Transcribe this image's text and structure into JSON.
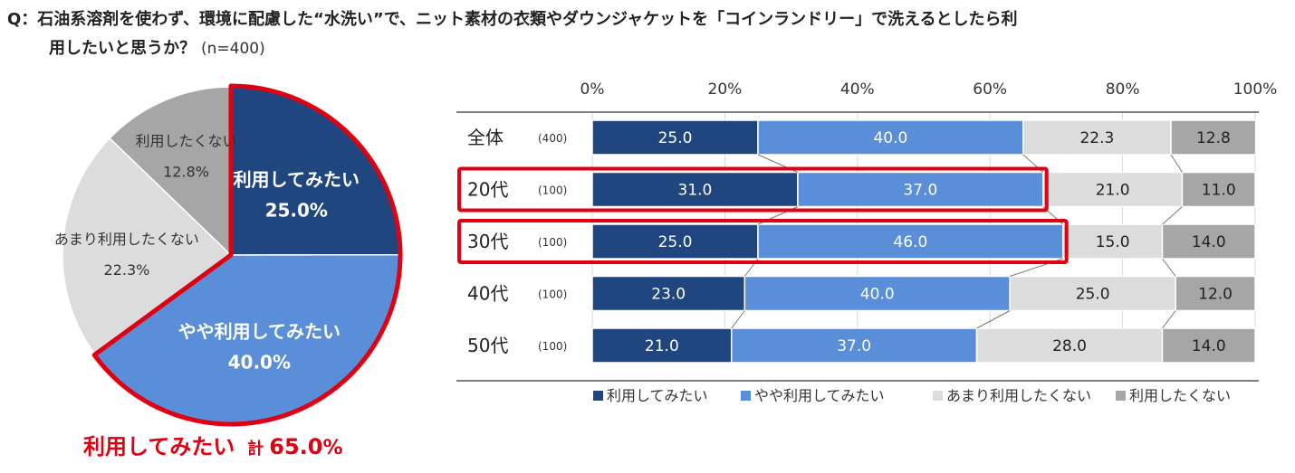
{
  "question": {
    "line1": "Q：石油系溶剤を使わず、環境に配慮した“水洗い”で、ニット素材の衣類やダウンジャケットを「コインランドリー」で洗えるとしたら利",
    "line2": "用したいと思うか？",
    "n": "(n=400)"
  },
  "pie": {
    "slices": [
      {
        "name": "利用してみたい",
        "value": 25.0,
        "label": "25.0%",
        "color": "#1f467f",
        "text_color": "#ffffff"
      },
      {
        "name": "やや利用してみたい",
        "value": 40.0,
        "label": "40.0%",
        "color": "#5a8ed8",
        "text_color": "#ffffff"
      },
      {
        "name": "あまり利用したくない",
        "value": 22.3,
        "label": "22.3%",
        "color": "#dcdcdc",
        "text_color": "#333333"
      },
      {
        "name": "利用したくない",
        "value": 12.8,
        "label": "12.8%",
        "color": "#a6a6a6",
        "text_color": "#333333"
      }
    ],
    "highlight_color": "#e00012"
  },
  "total": {
    "label": "利用してみたい",
    "kei": "計",
    "value": "65.0",
    "unit": "%"
  },
  "chart_data": {
    "type": "bar",
    "orientation": "horizontal-stacked-100",
    "xlim": [
      0,
      100
    ],
    "ticks": [
      "0%",
      "20%",
      "40%",
      "60%",
      "80%",
      "100%"
    ],
    "categories": [
      "全体",
      "20代",
      "30代",
      "40代",
      "50代"
    ],
    "n": [
      "(400)",
      "(100)",
      "(100)",
      "(100)",
      "(100)"
    ],
    "series": [
      {
        "name": "利用してみたい",
        "color": "#1f467f",
        "values": [
          25.0,
          31.0,
          25.0,
          23.0,
          21.0
        ]
      },
      {
        "name": "やや利用してみたい",
        "color": "#5a8ed8",
        "values": [
          40.0,
          37.0,
          46.0,
          40.0,
          37.0
        ]
      },
      {
        "name": "あまり利用したくない",
        "color": "#dcdcdc",
        "values": [
          22.3,
          21.0,
          15.0,
          25.0,
          28.0
        ]
      },
      {
        "name": "利用したくない",
        "color": "#a6a6a6",
        "values": [
          12.8,
          11.0,
          14.0,
          12.0,
          14.0
        ]
      }
    ],
    "highlighted": [
      "20代",
      "30代"
    ],
    "highlight_color": "#e00012",
    "legend": "bottom"
  }
}
